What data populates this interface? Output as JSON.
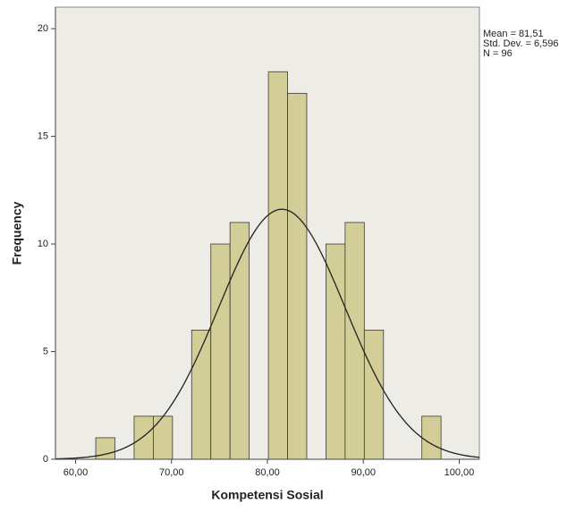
{
  "chart_data": {
    "type": "histogram",
    "x_label": "Kompetensi Sosial",
    "y_label": "Frequency",
    "bins": [
      62.1,
      64.1,
      66.1,
      68.1,
      70.1,
      72.1,
      74.1,
      76.1,
      78.1,
      80.1,
      82.1,
      84.1,
      86.1,
      88.1,
      90.1,
      92.1,
      94.1,
      96.1,
      98.1
    ],
    "counts": [
      1,
      0,
      2,
      2,
      0,
      6,
      10,
      11,
      0,
      18,
      17,
      0,
      10,
      11,
      6,
      0,
      0,
      2
    ],
    "color": "#d3cd98",
    "edge_color": "#3a3a3a",
    "xlim": [
      57.9,
      102.1
    ],
    "ylim": [
      0,
      21
    ],
    "xticks": [
      {
        "value": 60,
        "label": "60,00"
      },
      {
        "value": 70,
        "label": "70,00"
      },
      {
        "value": 80,
        "label": "80,00"
      },
      {
        "value": 90,
        "label": "90,00"
      },
      {
        "value": 100,
        "label": "100,00"
      }
    ],
    "yticks": [
      0,
      5,
      10,
      15,
      20
    ],
    "annotations": [
      "Mean = 81,51",
      "Std. Dev. = 6,596",
      "N = 96"
    ],
    "normal_curve": {
      "mean": 81.51,
      "sd": 6.596,
      "n": 96
    }
  }
}
